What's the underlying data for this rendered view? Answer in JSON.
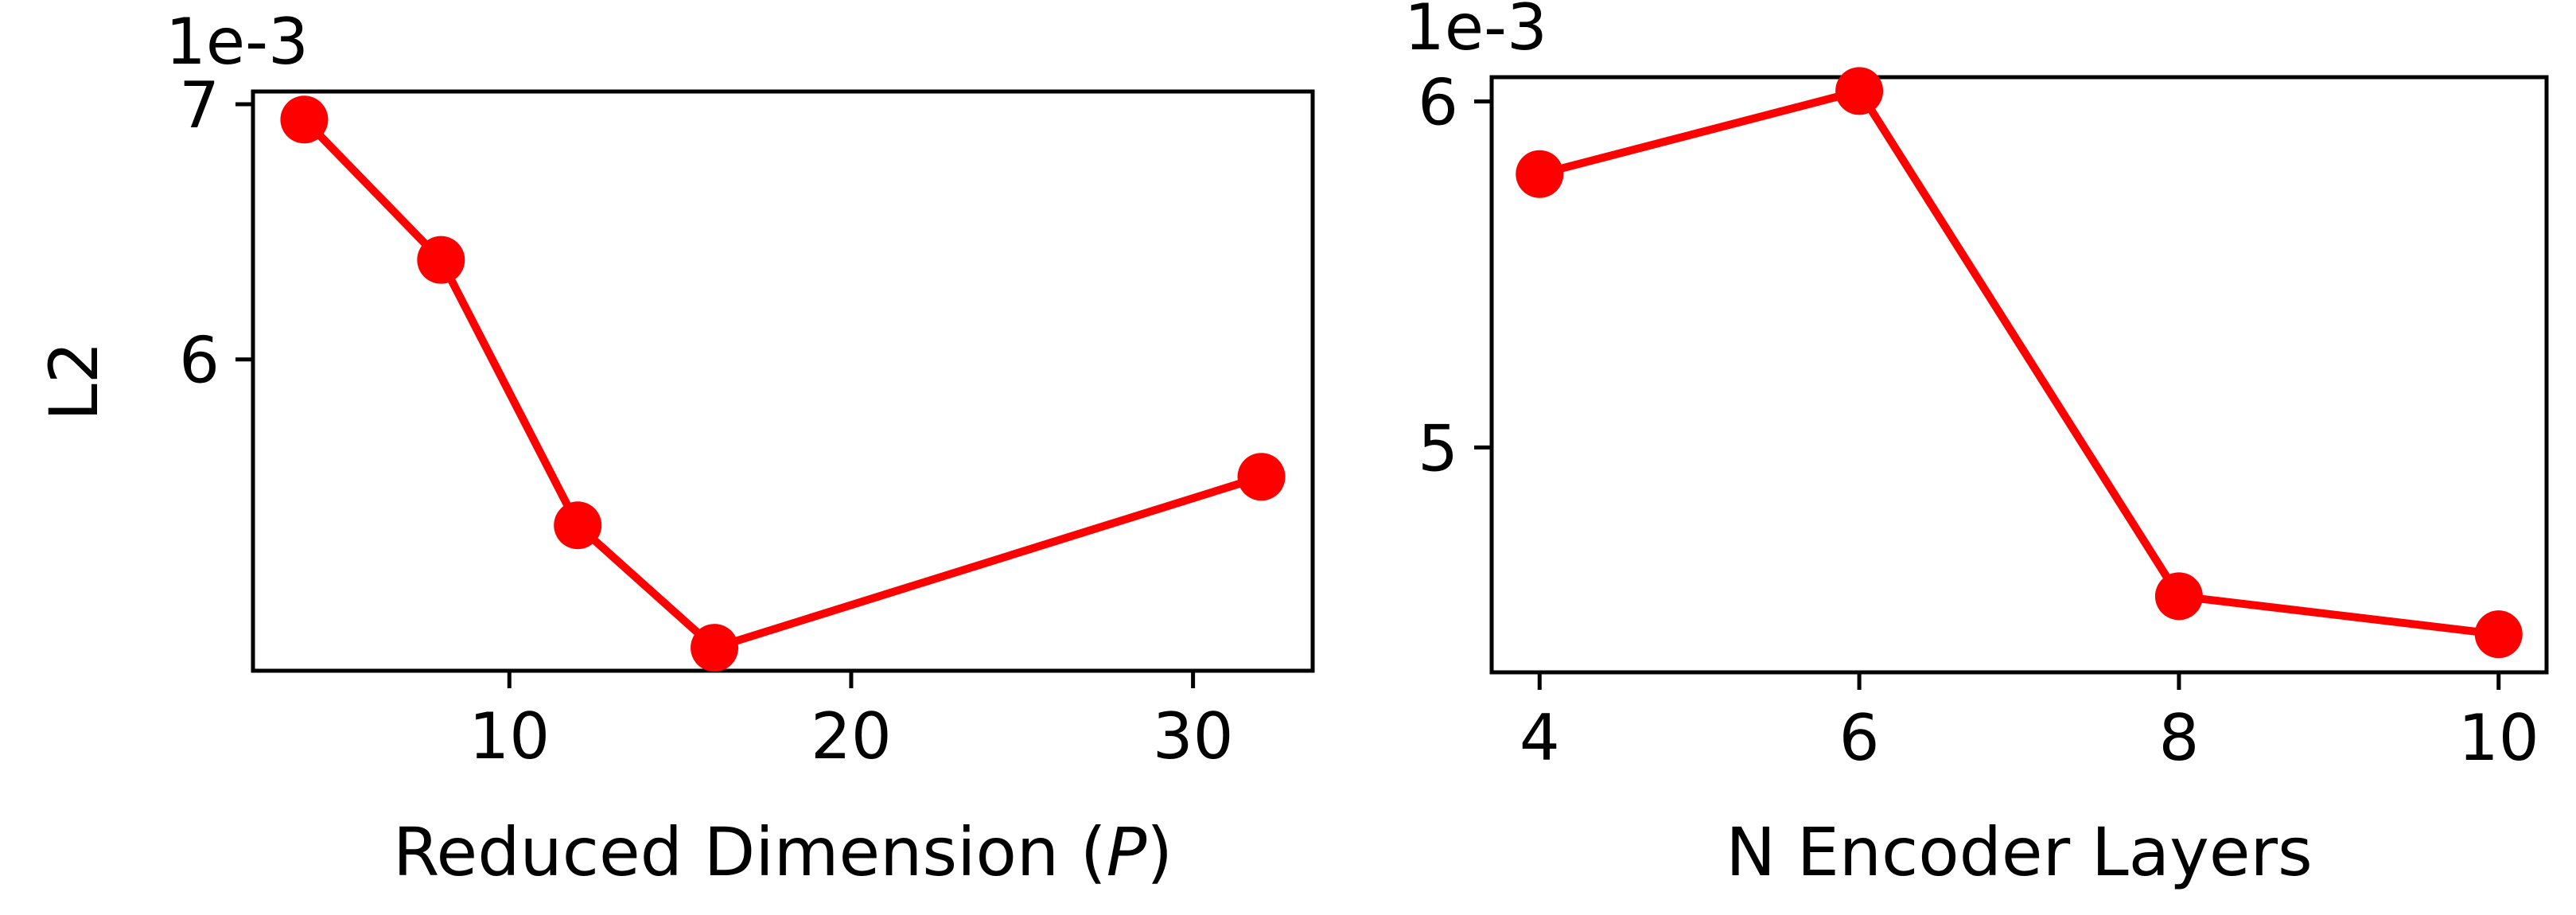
{
  "chart_data": [
    {
      "type": "line",
      "xlabel": "Reduced Dimension (",
      "xlabel_var": "P",
      "xlabel_end": ")",
      "ylabel": "L2",
      "offset_text": "1e-3",
      "x": [
        4,
        8,
        12,
        16,
        32
      ],
      "y": [
        0.00694,
        0.00639,
        0.00535,
        0.00487,
        0.00554
      ],
      "xlim": [
        2.5,
        33.5
      ],
      "ylim": [
        0.00478,
        0.00705
      ],
      "xticks": [
        10,
        20,
        30
      ],
      "xtick_labels": [
        "10",
        "20",
        "30"
      ],
      "yticks": [
        0.006,
        0.007
      ],
      "ytick_labels": [
        "6",
        "7"
      ],
      "series_color": "#ff0000",
      "grid": false
    },
    {
      "type": "line",
      "xlabel": "N Encoder Layers",
      "xlabel_var": "",
      "xlabel_end": "",
      "ylabel": "",
      "offset_text": "1e-3",
      "x": [
        4,
        6,
        8,
        10
      ],
      "y": [
        0.00579,
        0.00603,
        0.00457,
        0.00446
      ],
      "xlim": [
        3.7,
        10.3
      ],
      "ylim": [
        0.00435,
        0.00607
      ],
      "xticks": [
        4,
        6,
        8,
        10
      ],
      "xtick_labels": [
        "4",
        "6",
        "8",
        "10"
      ],
      "yticks": [
        0.005,
        0.006
      ],
      "ytick_labels": [
        "5",
        "6"
      ],
      "series_color": "#ff0000",
      "grid": false
    }
  ]
}
